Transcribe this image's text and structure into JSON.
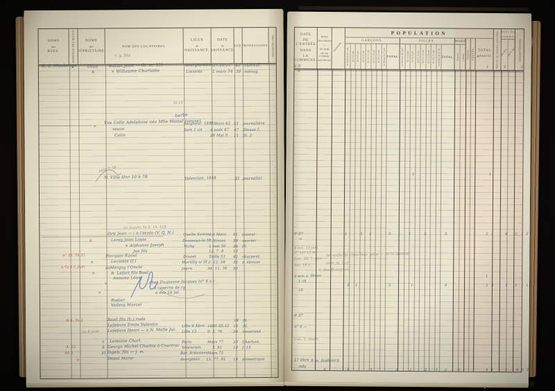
{
  "left_table": {
    "columns": [
      {
        "id": "rues",
        "label": "NOMS\ndes\nRUES.",
        "w": 44
      },
      {
        "id": "numeros-maisons",
        "label": "NUMÉROS DES MAISONS.",
        "w": 13,
        "vertical": true
      },
      {
        "id": "proprietaires",
        "label": "NOMS\ndes\nPROPRIÉTAIRES.",
        "w": 39
      },
      {
        "id": "locataires",
        "label": "NOM DES LOCATAIRES.",
        "w": 113,
        "single": true
      },
      {
        "id": "lieux-naissance",
        "label": "LIEUX\nde\nNAISSANCE.",
        "w": 40
      },
      {
        "id": "date-naissance",
        "label": "DATE\nde\nNAISSANCE.",
        "w": 33
      },
      {
        "id": "age",
        "label": "AGE.",
        "w": 12,
        "single": true
      },
      {
        "id": "professions",
        "label": "PROFESSIONS.",
        "w": 38,
        "single": true
      },
      {
        "id": "observations",
        "label": "OBSERVATIONS.",
        "w": 12,
        "vertical": true
      }
    ]
  },
  "right_table": {
    "title": "POPULATION",
    "date_entree": "DATE\nDE L'ENTRÉE\nDANS\nLA COMMUNE.",
    "mode": "MODE\nD'INSCRIPTION\n—\nDU NOM\nOU DE L'ORDRE\nD'INSCRIPTION.",
    "religion": "RELIGION.",
    "garcons_label": "GARÇONS.",
    "filles_label": "FILLES.",
    "maries_label": "MARIÉS.",
    "ages": [
      "au-dessous de 3 ans",
      "de 3 à 6 ans",
      "de 6 à 9 ans",
      "de 9 à 12 ans",
      "de 12 à 15 ans",
      "de 15 à 18 ans",
      "de 18 à 21 ans",
      "au-dessus de 21 ans"
    ],
    "total_label": "TOTAL.",
    "hommes": "Hommes.",
    "femmes": "Femmes.",
    "veufs": "VEUFS.",
    "veuves": "VEUVES.",
    "total_general": "TOTAL\ngénéral.",
    "renvoi": "Renvoi au registre précédent.",
    "election": "ÉLECTION\nCOMMUNALE.",
    "election_sub": [
      "Listes élect.",
      "Rappel p. âge."
    ],
    "decharges": "OBSERVATIONS."
  },
  "handwriting": [
    [
      60,
      93,
      6,
      "R. d. Maubeuge"
    ],
    [
      103,
      94,
      6,
      "2"
    ],
    [
      126,
      94,
      6,
      "Olun"
    ],
    [
      156,
      93,
      6,
      "Wattel Jean — (b. m. 31)"
    ],
    [
      267,
      93,
      5.5,
      "Avergnemont"
    ],
    [
      307,
      93,
      5.5,
      "27.10.51"
    ],
    [
      339,
      93,
      5.5,
      "43"
    ],
    [
      352,
      93,
      5.5,
      "cultivat."
    ],
    [
      131,
      101,
      7,
      "×",
      "r"
    ],
    [
      160,
      101,
      6,
      "×  Willaume Charlotte"
    ],
    [
      268,
      102,
      5.5,
      "Liessies"
    ],
    [
      306,
      102,
      5.5,
      "1 mars 54"
    ],
    [
      340,
      102,
      5.5,
      "39"
    ],
    [
      352,
      102,
      5.5,
      "ménag."
    ],
    [
      250,
      147,
      5,
      "M 15",
      "p"
    ],
    [
      252,
      165,
      6,
      "barbe",
      "b",
      -6
    ],
    [
      134,
      180,
      6,
      "×",
      "r"
    ],
    [
      150,
      176,
      5.8,
      "Vve Colle Adolphine   née Mlle Wattel  (veuve)"
    ],
    [
      265,
      177,
      5.3,
      "Soigneul. 1848"
    ],
    [
      303,
      177,
      5.3,
      "7 Mars 43"
    ],
    [
      337,
      177,
      5.3,
      "51"
    ],
    [
      350,
      177,
      5.3,
      "journalière"
    ],
    [
      162,
      185,
      5.6,
      "veuve"
    ],
    [
      265,
      186,
      5.3,
      "Sart 1 an"
    ],
    [
      303,
      186,
      5.3,
      "4 août 47"
    ],
    [
      337,
      186,
      5.3,
      "47"
    ],
    [
      350,
      186,
      5.3,
      "fileuse  f."
    ],
    [
      165,
      194,
      5.6,
      "Colin"
    ],
    [
      303,
      194,
      5.3,
      "28 Mai  9"
    ],
    [
      337,
      194,
      5.3,
      "11"
    ],
    [
      350,
      194,
      5.3,
      "fil.   2"
    ],
    [
      142,
      246,
      5,
      "Mlle 7.78",
      "p",
      -14
    ],
    [
      150,
      255,
      5.8,
      "N. Ville Hnr  10 h 78"
    ],
    [
      266,
      256,
      5.3,
      "Valencien. 1848"
    ],
    [
      338,
      256,
      5.3,
      "32"
    ],
    [
      350,
      256,
      5.3,
      "journalier"
    ],
    [
      178,
      328,
      4.8,
      "au moulin   Ta 6. 14. 118",
      "p"
    ],
    [
      155,
      336,
      5.6,
      "Orti Jean —  i à l'école  (V. Q. H.)"
    ],
    [
      264,
      337,
      5.2,
      "Quelle Somm."
    ],
    [
      301,
      337,
      5.2,
      "4.6 Mars"
    ],
    [
      336,
      337,
      5.2,
      "51"
    ],
    [
      349,
      337,
      5.2,
      "tisseur"
    ],
    [
      128,
      345,
      6,
      "×",
      "r"
    ],
    [
      160,
      345,
      5.6,
      "Leroy Jean Louis"
    ],
    [
      263,
      346,
      5.2,
      "Dressous-le-M."
    ],
    [
      301,
      346,
      5.2,
      "7 Nivose"
    ],
    [
      336,
      346,
      5.2,
      "39"
    ],
    [
      349,
      346,
      5.2,
      "ouvrier"
    ],
    [
      180,
      353,
      5.6,
      "×  Alphonse Joseph"
    ],
    [
      265,
      354,
      5.2,
      "Vichy"
    ],
    [
      301,
      354,
      5.2,
      "1 mai 56"
    ],
    [
      336,
      354,
      5.2,
      "34"
    ],
    [
      349,
      354,
      5.2,
      "fil."
    ],
    [
      192,
      361,
      5.4,
      "Jun fils"
    ],
    [
      301,
      361,
      5.2,
      "12. 7. 8"
    ],
    [
      336,
      361,
      5.2,
      "13"
    ],
    [
      90,
      367,
      5,
      "n° 35. Ta 31.",
      "r"
    ],
    [
      152,
      368,
      5.6,
      "Florquin Raoul"
    ],
    [
      264,
      369,
      5.2,
      "Dinant"
    ],
    [
      301,
      369,
      5.2,
      "Taille 51"
    ],
    [
      336,
      369,
      5.2,
      "42"
    ],
    [
      349,
      369,
      5.2,
      "charpent."
    ],
    [
      130,
      376,
      6,
      "×",
      "r"
    ],
    [
      160,
      376,
      5.6,
      "Lecomte  (f.)"
    ],
    [
      262,
      377,
      5.2,
      "Mortilly s/ Ill"
    ],
    [
      300,
      377,
      5.2,
      "2. 12. 58"
    ],
    [
      336,
      377,
      5.2,
      "35"
    ],
    [
      349,
      377,
      5.2,
      "s. épouse"
    ],
    [
      88,
      384,
      5,
      "à Ta 6 f. Juni",
      "r"
    ],
    [
      152,
      385,
      5.6,
      "saMerguy l'Oncle"
    ],
    [
      262,
      386,
      5.2,
      "journ."
    ],
    [
      299,
      386,
      5.2,
      "34. 11. 38"
    ],
    [
      336,
      386,
      5.2,
      "56"
    ],
    [
      132,
      392,
      6,
      "×",
      "r"
    ],
    [
      160,
      393,
      5.6,
      "R. Lefort fils  Boul"
    ],
    [
      163,
      400,
      5.6,
      "Antoine Léon"
    ],
    [
      215,
      406,
      5.4,
      "chez Duquesne Jacques  (n° 6 s.)"
    ],
    [
      150,
      407,
      6,
      "×",
      "r"
    ],
    [
      222,
      414,
      5.4,
      "à caserne  4e rg"
    ],
    [
      141,
      420,
      6,
      "×",
      "r"
    ],
    [
      224,
      421,
      5.4,
      "à des 14 jul."
    ],
    [
      160,
      432,
      5.6,
      "Rodier"
    ],
    [
      160,
      439,
      5.6,
      "Vallery Marcel"
    ],
    [
      95,
      461,
      5,
      "N 6. Ta 2.",
      "r"
    ],
    [
      155,
      460,
      5.6,
      "Bazil fils (h.) rude"
    ],
    [
      337,
      461,
      5.2,
      "18"
    ],
    [
      350,
      461,
      5.2,
      "fil."
    ],
    [
      155,
      468,
      5.6,
      "Lefebvre Emile Valentin"
    ],
    [
      262,
      469,
      5.2,
      "Lille 6 Xbre"
    ],
    [
      299,
      469,
      5.2,
      "1880 25.12"
    ],
    [
      336,
      469,
      5.2,
      "18"
    ],
    [
      350,
      469,
      5.2,
      "fil."
    ],
    [
      118,
      477,
      5,
      "au 6 sept.",
      "p"
    ],
    [
      155,
      476,
      5.6,
      "Lefebvre Henri —  à N. Melle Jul."
    ],
    [
      262,
      477,
      5.2,
      "Lille  13"
    ],
    [
      299,
      477,
      5.2,
      "9. 3. 76"
    ],
    [
      336,
      477,
      5.2,
      "24"
    ],
    [
      350,
      477,
      5.2,
      "tisserand"
    ],
    [
      146,
      491,
      6,
      "×",
      "r"
    ],
    [
      158,
      491,
      5.6,
      "Lemoine Charl."
    ],
    [
      262,
      492,
      5.2,
      "Paris"
    ],
    [
      299,
      492,
      5.2,
      "Mars 77"
    ],
    [
      336,
      492,
      5.2,
      "23"
    ],
    [
      349,
      492,
      5.2,
      "Charbon."
    ],
    [
      95,
      499,
      5,
      "A. 22.",
      "r"
    ],
    [
      147,
      500,
      5.4,
      "9"
    ],
    [
      155,
      499,
      5.6,
      "George Michel Charles  à Courtrai"
    ],
    [
      262,
      500,
      5.2,
      "Valencien."
    ],
    [
      306,
      500,
      5.2,
      "3. 81"
    ],
    [
      336,
      500,
      5.2,
      "19"
    ],
    [
      349,
      500,
      5.2,
      "f. 15"
    ],
    [
      93,
      508,
      5,
      "VA 3.",
      "r"
    ],
    [
      146,
      508,
      5.4,
      "31"
    ],
    [
      155,
      507,
      5.6,
      "Ingeb. fils — j. m."
    ],
    [
      260,
      508,
      5.2,
      "Bar. Ardennes"
    ],
    [
      299,
      508,
      5.2,
      "Mars 72"
    ],
    [
      110,
      517,
      6,
      "×",
      "r"
    ],
    [
      155,
      516,
      5.6,
      "Imant Marie"
    ],
    [
      260,
      517,
      5.2,
      "Avergnies"
    ],
    [
      297,
      517,
      5.2,
      "13. 77. 81"
    ],
    [
      336,
      517,
      5.2,
      "19"
    ],
    [
      349,
      517,
      5.2,
      "domestique"
    ],
    [
      424,
      94,
      5.4,
      "à 9"
    ],
    [
      429,
      101,
      5.4,
      "h"
    ],
    [
      701,
      95,
      5.2,
      "1"
    ],
    [
      709,
      95,
      5.2,
      "1"
    ],
    [
      726,
      95,
      5.2,
      "2"
    ],
    [
      751,
      95,
      5.2,
      "2"
    ],
    [
      594,
      250,
      5.2,
      "1"
    ],
    [
      705,
      250,
      5.2,
      "1"
    ],
    [
      424,
      336,
      5.4,
      "P 37"
    ],
    [
      432,
      343,
      5.4,
      "s"
    ],
    [
      497,
      336,
      5,
      "1"
    ],
    [
      519,
      336,
      5,
      "3"
    ],
    [
      532,
      336,
      5,
      "1"
    ],
    [
      560,
      336,
      5,
      "5"
    ],
    [
      589,
      336,
      5,
      "1"
    ],
    [
      611,
      336,
      5,
      "3"
    ],
    [
      641,
      336,
      5,
      "5"
    ],
    [
      700,
      336,
      5,
      "2"
    ],
    [
      708,
      336,
      5,
      "1"
    ],
    [
      728,
      336,
      5,
      "8"
    ],
    [
      742,
      336,
      5,
      "2"
    ],
    [
      751,
      336,
      5,
      "1"
    ],
    [
      758,
      336,
      5,
      "2"
    ],
    [
      424,
      357,
      4.8,
      "4 oct. 12 juin",
      "p"
    ],
    [
      424,
      364,
      4.8,
      "n° 1er  12 m.",
      "p"
    ],
    [
      470,
      367,
      5.4,
      "les enfants chez leur père  —  et la izanne",
      "p"
    ],
    [
      424,
      373,
      4.8,
      "Lun. 28. 7. juin",
      "p"
    ],
    [
      470,
      378,
      5,
      "avec m.  (—)",
      "p"
    ],
    [
      424,
      382,
      4.8,
      "Sur. 18 f.",
      "p"
    ],
    [
      460,
      388,
      5.2,
      "r. des Bolognes",
      "p"
    ],
    [
      424,
      397,
      5,
      "2 oct. s. Dinan"
    ],
    [
      700,
      397,
      5,
      "1"
    ],
    [
      708,
      397,
      5,
      "1"
    ],
    [
      430,
      404,
      5,
      "1 ch"
    ],
    [
      500,
      410,
      5,
      "3"
    ],
    [
      512,
      410,
      5,
      "1"
    ],
    [
      560,
      410,
      5,
      "5"
    ],
    [
      592,
      410,
      5,
      "1"
    ],
    [
      641,
      410,
      5,
      "4"
    ],
    [
      700,
      410,
      5,
      "2"
    ],
    [
      708,
      410,
      5,
      "3"
    ],
    [
      728,
      410,
      5,
      "1"
    ],
    [
      742,
      410,
      5,
      "2"
    ],
    [
      751,
      410,
      5,
      "1"
    ],
    [
      758,
      410,
      5,
      "1"
    ],
    [
      430,
      417,
      5,
      "18"
    ],
    [
      424,
      454,
      5.4,
      "P 37"
    ],
    [
      424,
      470,
      5,
      "n° 9 —"
    ],
    [
      424,
      489,
      4.8,
      "Con. 2. Mathi",
      "p"
    ],
    [
      424,
      518,
      5.2,
      "17 9bre"
    ],
    [
      448,
      519,
      5.4,
      "9 m. faubourg"
    ],
    [
      430,
      527,
      5,
      "mdy"
    ],
    [
      466,
      532,
      5,
      "9"
    ],
    [
      500,
      532,
      5,
      "6"
    ],
    [
      533,
      532,
      5,
      "3"
    ],
    [
      570,
      532,
      5,
      "2"
    ],
    [
      590,
      532,
      5,
      "1"
    ],
    [
      612,
      532,
      5,
      "2"
    ],
    [
      628,
      532,
      5,
      "1"
    ],
    [
      641,
      532,
      5,
      "2"
    ],
    [
      660,
      532,
      5,
      "1"
    ],
    [
      700,
      532,
      5,
      "4"
    ],
    [
      708,
      532,
      5,
      "1"
    ],
    [
      728,
      532,
      5,
      "2"
    ],
    [
      744,
      532,
      5,
      "4"
    ],
    [
      752,
      532,
      5,
      "1"
    ],
    [
      759,
      532,
      5,
      "2"
    ],
    [
      165,
      78,
      6,
      "r. y. bis",
      "p"
    ]
  ],
  "colors": {
    "page_cream": "#ece6d0",
    "grid_line": "#52483a",
    "row_rule": "#6c7686",
    "ink": "#566074",
    "red_ink": "#ac3c30",
    "blue_pencil": "#4c60ac",
    "pink_tint": "#e1a591",
    "cover_dark": "#241c12"
  }
}
